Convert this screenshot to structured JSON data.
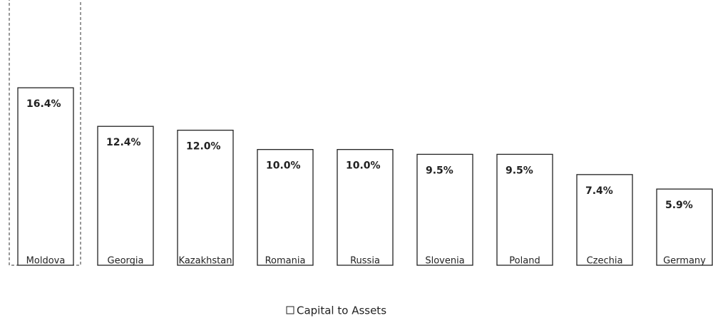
{
  "chart_data": {
    "type": "bar",
    "categories": [
      "Moldova",
      "Georgia",
      "Kazakhstan",
      "Romania",
      "Russia",
      "Slovenia",
      "Poland",
      "Czechia",
      "Germany"
    ],
    "series": [
      {
        "name": "Capital to Assets",
        "color": "#ffffff",
        "values": [
          16.4,
          12.4,
          12.0,
          10.0,
          10.0,
          9.5,
          9.5,
          7.4,
          5.9
        ],
        "value_labels": [
          "16.4%",
          "12.4%",
          "12.0%",
          "10.0%",
          "10.0%",
          "9.5%",
          "9.5%",
          "7.4%",
          "5.9%"
        ]
      }
    ],
    "ylim": [
      -2,
      25.5
    ],
    "legend": "bottom"
  }
}
